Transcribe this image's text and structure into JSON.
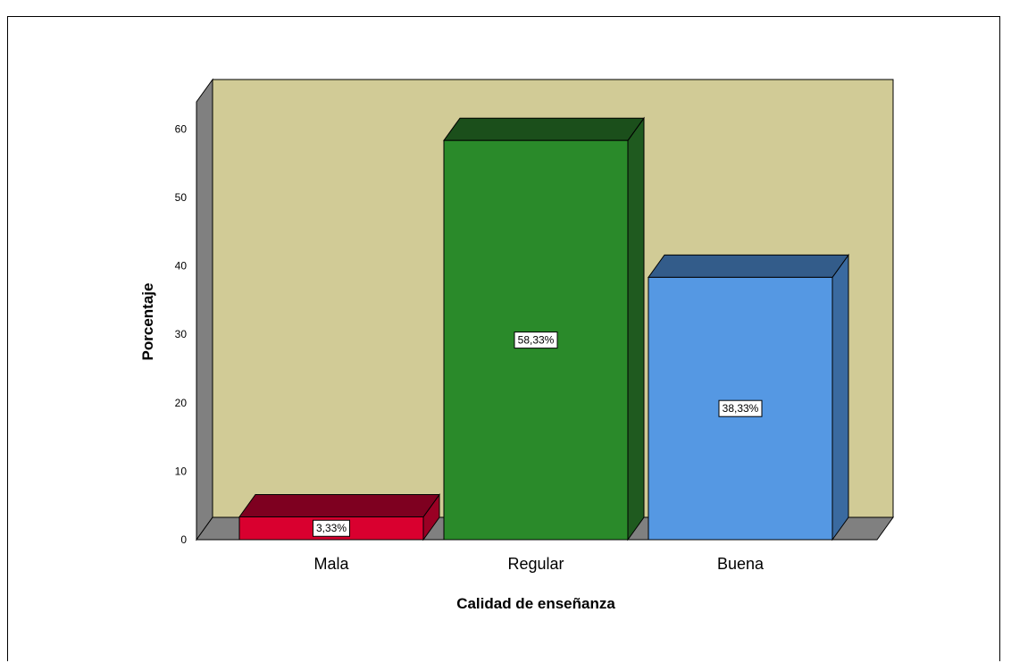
{
  "chart_data": {
    "type": "bar",
    "categories": [
      "Mala",
      "Regular",
      "Buena"
    ],
    "values": [
      3.33,
      58.33,
      38.33
    ],
    "data_labels": [
      "3,33%",
      "58,33%",
      "38,33%"
    ],
    "xlabel": "Calidad de enseñanza",
    "ylabel": "Porcentaje",
    "ylim": [
      0,
      60
    ],
    "yticks": [
      0,
      10,
      20,
      30,
      40,
      50,
      60
    ],
    "grid": false,
    "three_d": true,
    "colors": {
      "wall": "#d1cb96",
      "side_wall": "#808080",
      "floor": "#808080",
      "bars": [
        {
          "front": "#d9002f",
          "top": "#7e0020",
          "side": "#9a0024"
        },
        {
          "front": "#2a8a2a",
          "top": "#1b4f1b",
          "side": "#1f5a1f"
        },
        {
          "front": "#5598e3",
          "top": "#335c8a",
          "side": "#3a6aa0"
        }
      ]
    }
  }
}
